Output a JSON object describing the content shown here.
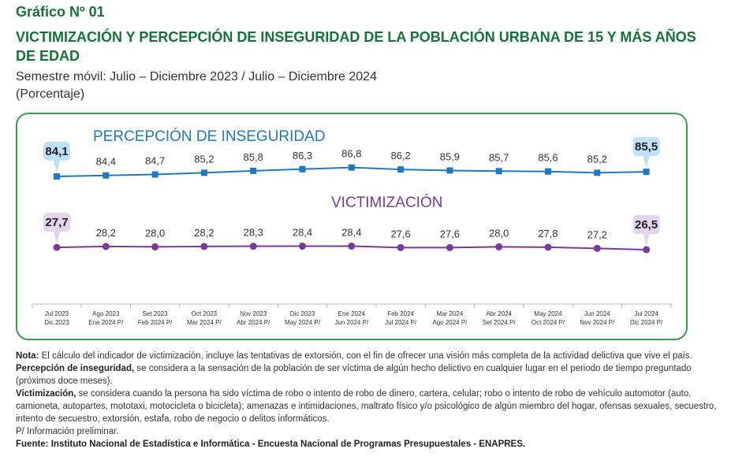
{
  "header": {
    "graph_number": "Gráfico Nº 01",
    "title": "VICTIMIZACIÓN Y PERCEPCIÓN DE INSEGURIDAD DE LA POBLACIÓN URBANA DE 15 Y MÁS AÑOS DE EDAD",
    "subtitle": "Semestre móvil: Julio – Diciembre 2023 / Julio – Diciembre 2024",
    "unit": "(Porcentaje)"
  },
  "chart_data": {
    "type": "line",
    "categories": [
      [
        "Jul 2023",
        "Dic 2023"
      ],
      [
        "Ago 2023",
        "Ene 2024 P/"
      ],
      [
        "Set 2023",
        "Feb 2024 P/"
      ],
      [
        "Oct 2023",
        "Mar 2024 P/"
      ],
      [
        "Nov 2023",
        "Abr 2024 P/"
      ],
      [
        "Dic 2023",
        "May 2024 P/"
      ],
      [
        "Ene 2024",
        "Jun 2024 P/"
      ],
      [
        "Feb 2024",
        "Jul 2024 P/"
      ],
      [
        "Mar 2024",
        "Ago 2024 P/"
      ],
      [
        "Abr 2024",
        "Set 2024 P/"
      ],
      [
        "May 2024",
        "Oct 2024 P/"
      ],
      [
        "Jun 2024",
        "Nov 2024 P/"
      ],
      [
        "Jul 2024",
        "Dic 2024 P/"
      ]
    ],
    "series": [
      {
        "name": "PERCEPCIÓN DE INSEGURIDAD",
        "color": "#1f78c1",
        "highlight_color": "#bfe0f5",
        "marker": "square",
        "values": [
          84.1,
          84.4,
          84.7,
          85.2,
          85.8,
          86.3,
          86.8,
          86.2,
          85.9,
          85.7,
          85.6,
          85.2,
          85.5
        ],
        "labels": [
          "84,1",
          "84,4",
          "84,7",
          "85,2",
          "85,8",
          "86,3",
          "86,8",
          "86,2",
          "85,9",
          "85,7",
          "85,6",
          "85,2",
          "85,5"
        ]
      },
      {
        "name": "VICTIMIZACIÓN",
        "color": "#7b3a9a",
        "highlight_color": "#e3d5ee",
        "marker": "circle",
        "values": [
          27.7,
          28.2,
          28.0,
          28.2,
          28.3,
          28.4,
          28.4,
          27.6,
          27.6,
          28.0,
          27.8,
          27.2,
          26.5
        ],
        "labels": [
          "27,7",
          "28,2",
          "28,0",
          "28,2",
          "28,3",
          "28,4",
          "28,4",
          "27,6",
          "27,6",
          "28,0",
          "27,8",
          "27,2",
          "26,5"
        ]
      }
    ],
    "highlighted_points": "first and last",
    "grid": false
  },
  "notes": [
    {
      "label": "Nota:",
      "text": " El cálculo del indicador de victimización, incluye las tentativas de extorsión, con el fin de ofrecer una visión más completa de la actividad delictiva que vive el país."
    },
    {
      "label": "Percepción de inseguridad,",
      "text": " se considera a la sensación de la población de ser víctima de algún hecho delictivo en cualquier lugar en el periodo de tiempo preguntado (próximos doce meses)."
    },
    {
      "label": "Victimización,",
      "text": " se considera cuando la persona ha sido víctima de robo o intento de robo de dinero, cartera, celular; robo o intento de robo de vehículo automotor (auto, camioneta, autopartes, mototaxi, motocicleta o bicicleta); amenazas e intimidaciones, maltrato físico y/o psicológico de algún miembro del hogar, ofensas sexuales, secuestro, intento de secuestro, extorsión, estafa, robo de negocio o delitos informáticos."
    },
    {
      "label": "",
      "text": "P/ Información preliminar."
    },
    {
      "label": "Fuente: Instituto Nacional de Estadística e Informática - Encuesta Nacional de Programas Presupuestales - ENAPRES.",
      "text": ""
    }
  ]
}
